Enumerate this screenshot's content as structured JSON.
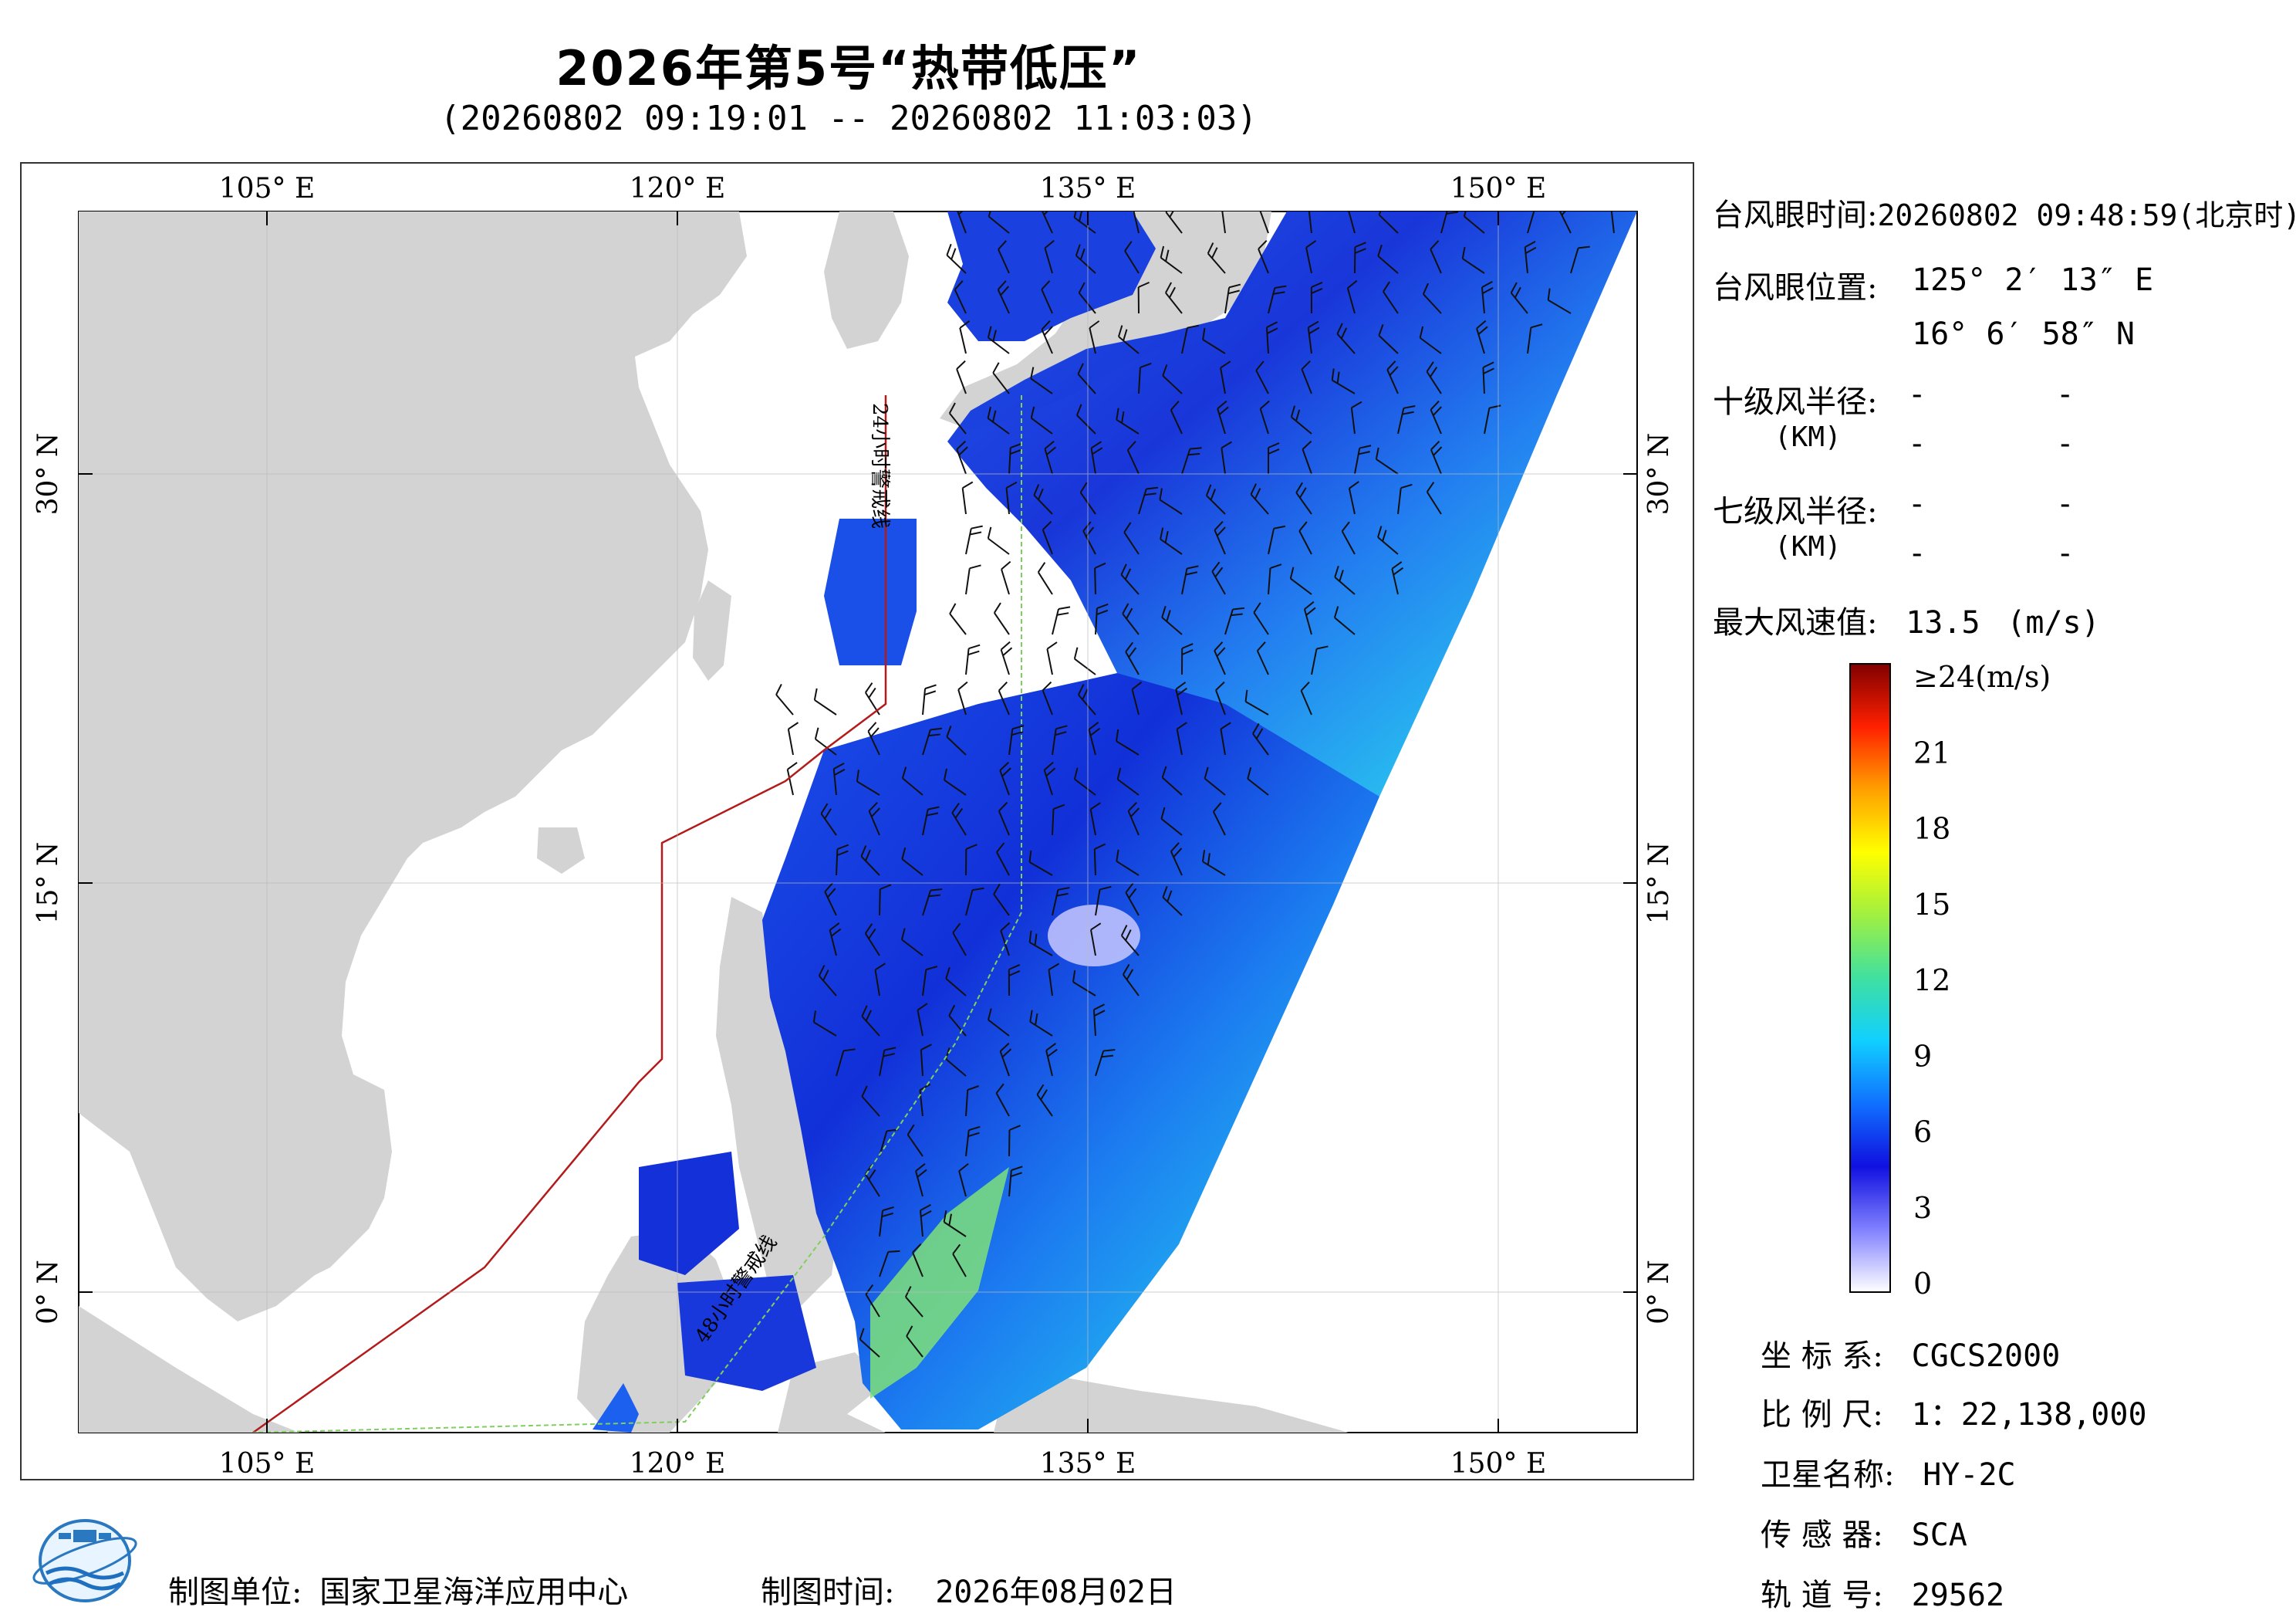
{
  "title": "2026年第5号“热带低压”",
  "time_range": "(20260802 09:19:01 -- 20260802 11:03:03)",
  "map": {
    "lon_ticks": [
      "105° E",
      "120° E",
      "135° E",
      "150° E"
    ],
    "lat_ticks": [
      "30° N",
      "15° N",
      "0° N"
    ],
    "land_color": "#d3d3d3",
    "ocean_color": "#ffffff",
    "line_24h_label": "24小时警戒线",
    "line_48h_label": "48小时警戒线",
    "line_24h_color": "#b31b1b",
    "line_48h_color": "#7fcf5f"
  },
  "info": {
    "eye_time_label": "台风眼时间:",
    "eye_time_value": "20260802 09:48:59(北京时)",
    "eye_pos_label": "台风眼位置:",
    "eye_lon": "125° 2′ 13″ E",
    "eye_lat": "16° 6′ 58″ N",
    "r10_label": "十级风半径:",
    "r7_label": "七级风半径:",
    "km_label": "(KM)",
    "dash": "-",
    "max_wind_label": "最大风速值:",
    "max_wind_value": "13.5",
    "max_wind_unit": "(m/s)"
  },
  "colorbar": {
    "labels": [
      "≥24(m/s)",
      "21",
      "18",
      "15",
      "12",
      "9",
      "6",
      "3",
      "0"
    ],
    "colors": [
      "#ffffff",
      "#8080ff",
      "#1010e0",
      "#1070ff",
      "#10d0ff",
      "#40e0a0",
      "#a0f040",
      "#ffff00",
      "#ffa000",
      "#ff2000",
      "#800000"
    ]
  },
  "meta": {
    "crs_label": "坐 标 系:",
    "crs_value": "CGCS2000",
    "scale_label": "比 例 尺:",
    "scale_value": "1：22,138,000",
    "satellite_label": "卫星名称:",
    "satellite_value": "HY-2C",
    "sensor_label": "传 感 器:",
    "sensor_value": "SCA",
    "orbit_label": "轨 道 号:",
    "orbit_value": "29562"
  },
  "footer": {
    "maker_label": "制图单位:",
    "maker_value": "国家卫星海洋应用中心",
    "date_label": "制图时间:",
    "date_value": "2026年08月02日"
  }
}
